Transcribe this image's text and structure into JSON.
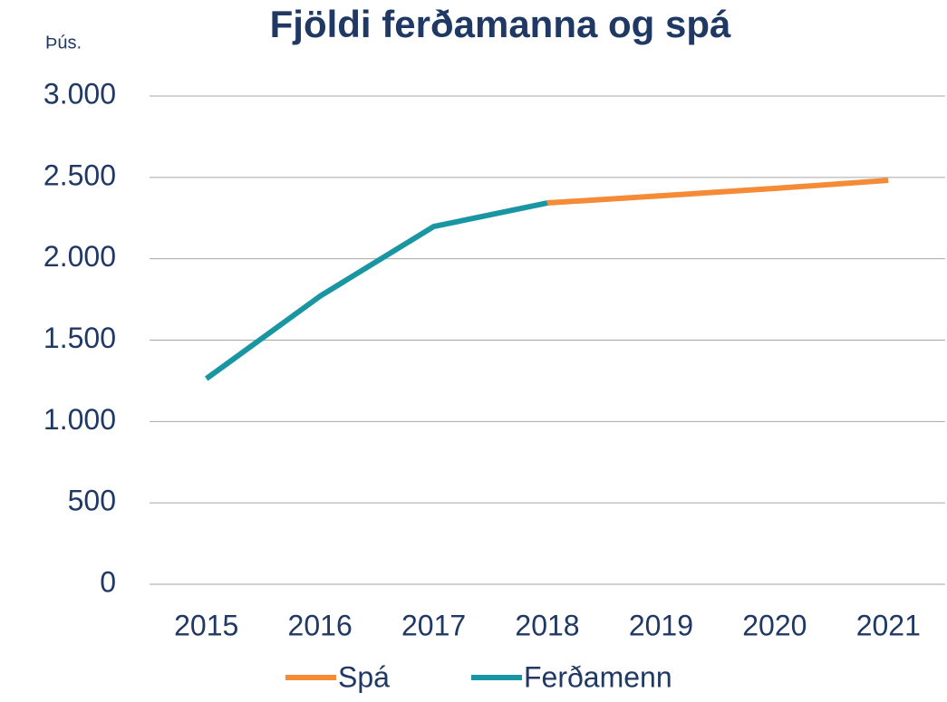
{
  "chart_data": {
    "type": "line",
    "title": "Fjöldi ferðamanna og spá",
    "unit_label": "Þús.",
    "categories": [
      "2015",
      "2016",
      "2017",
      "2018",
      "2019",
      "2020",
      "2021"
    ],
    "series": [
      {
        "name": "Spá",
        "color": "#f58b36",
        "values": [
          null,
          null,
          null,
          2343,
          2387,
          2432,
          2482
        ]
      },
      {
        "name": "Ferðamenn",
        "color": "#1a96a3",
        "values": [
          1263,
          1770,
          2198,
          2343,
          null,
          null,
          null
        ]
      }
    ],
    "ylim": [
      0,
      3000
    ],
    "yticks": [
      0,
      500,
      {
        "value": 1000,
        "label": "1.000"
      },
      {
        "value": 1500,
        "label": "1.500"
      },
      {
        "value": 2000,
        "label": "2.000"
      },
      {
        "value": 2500,
        "label": "2.500"
      },
      {
        "value": 3000,
        "label": "3.000"
      }
    ],
    "grid": true,
    "legend": "bottom"
  }
}
